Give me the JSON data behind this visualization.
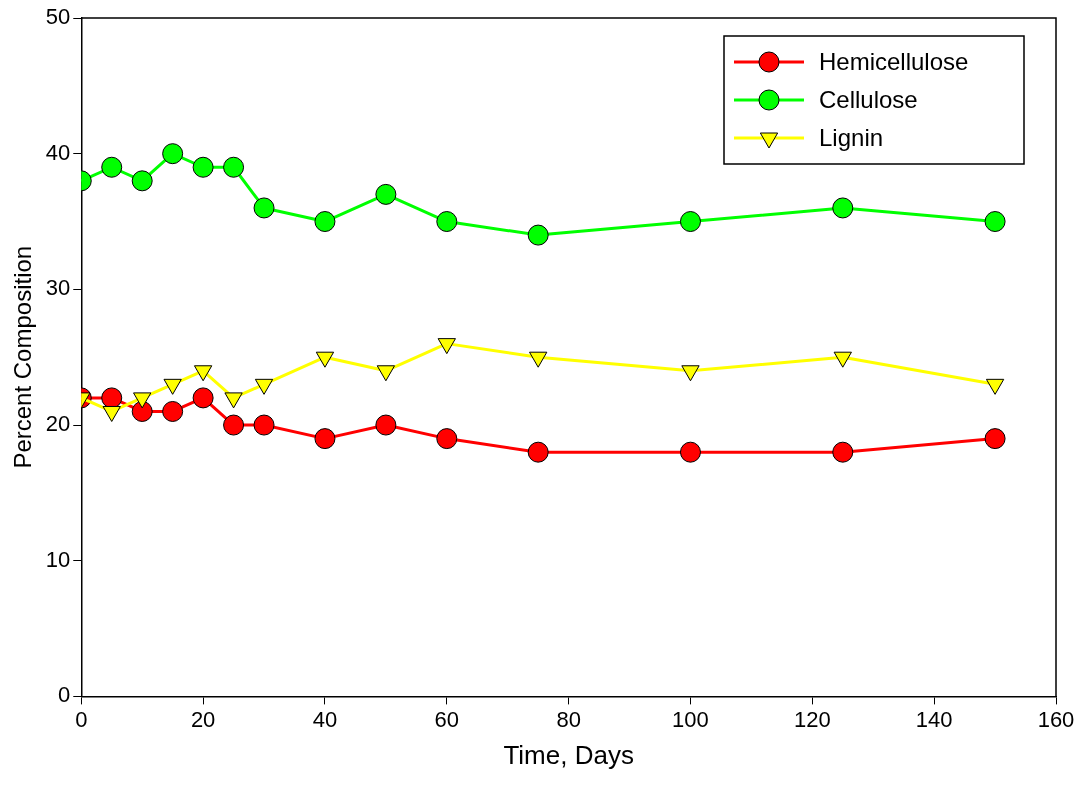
{
  "chart_data": {
    "type": "line",
    "xlabel": "Time, Days",
    "ylabel": "Percent Composition",
    "x": [
      0,
      5,
      10,
      15,
      20,
      25,
      30,
      40,
      50,
      60,
      75,
      100,
      125,
      150
    ],
    "series": [
      {
        "name": "Hemicellulose",
        "color": "#ff0000",
        "marker": "circle",
        "values": [
          22,
          22,
          21,
          21,
          22,
          20,
          20,
          19,
          20,
          19,
          18,
          18,
          18,
          19
        ]
      },
      {
        "name": "Cellulose",
        "color": "#00ff00",
        "marker": "circle",
        "values": [
          38,
          39,
          38,
          40,
          39,
          39,
          36,
          35,
          37,
          35,
          34,
          35,
          36,
          35
        ]
      },
      {
        "name": "Lignin",
        "color": "#ffff00",
        "marker": "triangle",
        "values": [
          22,
          21,
          22,
          23,
          24,
          22,
          23,
          25,
          24,
          26,
          25,
          24,
          25,
          23
        ]
      }
    ],
    "xlim": [
      0,
      160
    ],
    "xticks": [
      0,
      20,
      40,
      60,
      80,
      100,
      120,
      140,
      160
    ],
    "ylim": [
      0,
      50
    ],
    "yticks": [
      0,
      10,
      20,
      30,
      40,
      50
    ],
    "grid": false,
    "legend": "top right",
    "line_style": "solid"
  }
}
